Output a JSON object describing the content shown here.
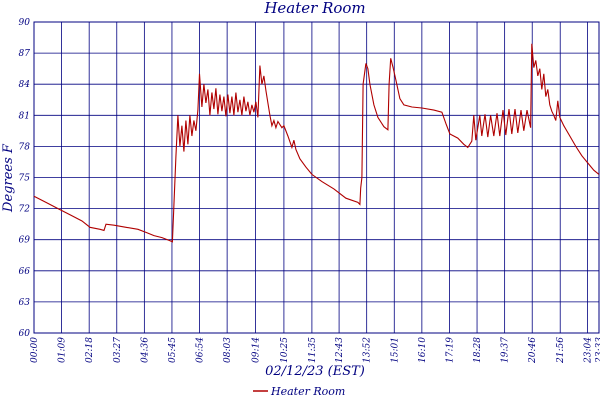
{
  "chart_data": {
    "type": "line",
    "title": "Heater Room",
    "xlabel": "02/12/23 (EST)",
    "ylabel": "Degrees F",
    "ylim": [
      60,
      90
    ],
    "yticks": [
      60,
      63,
      66,
      69,
      72,
      75,
      78,
      81,
      84,
      87,
      90
    ],
    "ytick_labels": [
      "60",
      "63",
      "66",
      "69",
      "72",
      "75",
      "78",
      "81",
      "84",
      "87",
      "90"
    ],
    "xlim": [
      "00:00",
      "23:33"
    ],
    "xticks": [
      "00:00",
      "01:09",
      "02:18",
      "03:27",
      "04:36",
      "05:45",
      "06:54",
      "08:03",
      "09:14",
      "10:25",
      "11:35",
      "12:43",
      "13:52",
      "15:01",
      "16:10",
      "17:19",
      "18:28",
      "19:37",
      "20:46",
      "21:56",
      "23:04",
      "23:33"
    ],
    "grid": true,
    "legend_position": "bottom-center",
    "colors": {
      "series": "#b00000",
      "grid": "#000080",
      "text": "#000080"
    },
    "series": [
      {
        "name": "Heater Room",
        "points": [
          [
            "00:00",
            73.2
          ],
          [
            "00:30",
            72.6
          ],
          [
            "01:00",
            72.0
          ],
          [
            "01:30",
            71.4
          ],
          [
            "02:00",
            70.8
          ],
          [
            "02:20",
            70.2
          ],
          [
            "02:45",
            70.0
          ],
          [
            "02:55",
            69.9
          ],
          [
            "03:00",
            70.5
          ],
          [
            "03:20",
            70.4
          ],
          [
            "03:50",
            70.2
          ],
          [
            "04:20",
            70.0
          ],
          [
            "04:40",
            69.7
          ],
          [
            "05:00",
            69.4
          ],
          [
            "05:20",
            69.2
          ],
          [
            "05:40",
            68.9
          ],
          [
            "05:46",
            68.8
          ],
          [
            "05:55",
            77.0
          ],
          [
            "06:00",
            81.0
          ],
          [
            "06:05",
            78.0
          ],
          [
            "06:10",
            80.0
          ],
          [
            "06:15",
            77.5
          ],
          [
            "06:20",
            80.5
          ],
          [
            "06:25",
            78.2
          ],
          [
            "06:30",
            81.0
          ],
          [
            "06:35",
            79.0
          ],
          [
            "06:40",
            80.5
          ],
          [
            "06:45",
            79.5
          ],
          [
            "06:50",
            81.5
          ],
          [
            "06:54",
            85.0
          ],
          [
            "07:00",
            81.8
          ],
          [
            "07:05",
            84.0
          ],
          [
            "07:10",
            82.2
          ],
          [
            "07:15",
            83.5
          ],
          [
            "07:20",
            81.0
          ],
          [
            "07:25",
            83.2
          ],
          [
            "07:30",
            81.6
          ],
          [
            "07:35",
            83.6
          ],
          [
            "07:40",
            81.1
          ],
          [
            "07:45",
            83.0
          ],
          [
            "07:50",
            81.4
          ],
          [
            "07:55",
            82.8
          ],
          [
            "08:00",
            80.9
          ],
          [
            "08:05",
            83.0
          ],
          [
            "08:10",
            81.2
          ],
          [
            "08:15",
            82.8
          ],
          [
            "08:20",
            81.0
          ],
          [
            "08:25",
            83.2
          ],
          [
            "08:30",
            81.3
          ],
          [
            "08:35",
            82.5
          ],
          [
            "08:40",
            81.0
          ],
          [
            "08:45",
            82.8
          ],
          [
            "08:50",
            81.4
          ],
          [
            "08:55",
            82.3
          ],
          [
            "09:00",
            81.0
          ],
          [
            "09:05",
            82.0
          ],
          [
            "09:10",
            81.3
          ],
          [
            "09:15",
            82.3
          ],
          [
            "09:20",
            80.8
          ],
          [
            "09:25",
            85.8
          ],
          [
            "09:30",
            84.0
          ],
          [
            "09:35",
            84.8
          ],
          [
            "09:40",
            83.4
          ],
          [
            "09:45",
            82.2
          ],
          [
            "09:50",
            81.0
          ],
          [
            "09:55",
            80.0
          ],
          [
            "10:00",
            80.5
          ],
          [
            "10:05",
            79.8
          ],
          [
            "10:10",
            80.4
          ],
          [
            "10:20",
            79.8
          ],
          [
            "10:25",
            80.0
          ],
          [
            "10:35",
            79.0
          ],
          [
            "10:45",
            77.9
          ],
          [
            "10:50",
            78.6
          ],
          [
            "10:55",
            77.7
          ],
          [
            "11:05",
            76.8
          ],
          [
            "11:20",
            76.0
          ],
          [
            "11:35",
            75.3
          ],
          [
            "12:00",
            74.6
          ],
          [
            "12:30",
            73.9
          ],
          [
            "13:00",
            73.0
          ],
          [
            "13:30",
            72.6
          ],
          [
            "13:35",
            72.4
          ],
          [
            "13:37",
            74.0
          ],
          [
            "13:40",
            75.0
          ],
          [
            "13:43",
            84.0
          ],
          [
            "13:50",
            86.0
          ],
          [
            "13:55",
            85.5
          ],
          [
            "14:00",
            84.0
          ],
          [
            "14:10",
            82.0
          ],
          [
            "14:20",
            80.8
          ],
          [
            "14:35",
            79.9
          ],
          [
            "14:45",
            79.6
          ],
          [
            "14:48",
            84.0
          ],
          [
            "14:52",
            86.5
          ],
          [
            "14:58",
            85.6
          ],
          [
            "15:05",
            84.4
          ],
          [
            "15:15",
            82.6
          ],
          [
            "15:25",
            82.0
          ],
          [
            "15:45",
            81.8
          ],
          [
            "16:10",
            81.7
          ],
          [
            "16:40",
            81.5
          ],
          [
            "17:00",
            81.3
          ],
          [
            "17:10",
            80.2
          ],
          [
            "17:20",
            79.2
          ],
          [
            "17:40",
            78.8
          ],
          [
            "17:55",
            78.2
          ],
          [
            "18:05",
            77.9
          ],
          [
            "18:15",
            78.5
          ],
          [
            "18:20",
            81.0
          ],
          [
            "18:25",
            78.6
          ],
          [
            "18:35",
            81.0
          ],
          [
            "18:40",
            79.0
          ],
          [
            "18:48",
            81.1
          ],
          [
            "18:55",
            78.9
          ],
          [
            "19:02",
            81.0
          ],
          [
            "19:10",
            79.0
          ],
          [
            "19:18",
            81.2
          ],
          [
            "19:25",
            79.0
          ],
          [
            "19:33",
            81.5
          ],
          [
            "19:40",
            79.1
          ],
          [
            "19:48",
            81.6
          ],
          [
            "19:55",
            79.2
          ],
          [
            "20:03",
            81.6
          ],
          [
            "20:10",
            79.3
          ],
          [
            "20:18",
            81.5
          ],
          [
            "20:25",
            79.5
          ],
          [
            "20:33",
            81.5
          ],
          [
            "20:42",
            79.8
          ],
          [
            "20:45",
            87.9
          ],
          [
            "20:50",
            85.6
          ],
          [
            "20:55",
            86.3
          ],
          [
            "21:00",
            84.8
          ],
          [
            "21:05",
            85.5
          ],
          [
            "21:10",
            83.5
          ],
          [
            "21:15",
            85.0
          ],
          [
            "21:20",
            82.8
          ],
          [
            "21:25",
            83.5
          ],
          [
            "21:30",
            82.0
          ],
          [
            "21:35",
            81.4
          ],
          [
            "21:40",
            81.0
          ],
          [
            "21:45",
            80.5
          ],
          [
            "21:50",
            82.4
          ],
          [
            "21:55",
            80.8
          ],
          [
            "22:05",
            80.0
          ],
          [
            "22:20",
            79.0
          ],
          [
            "22:35",
            78.0
          ],
          [
            "22:50",
            77.1
          ],
          [
            "23:05",
            76.4
          ],
          [
            "23:20",
            75.7
          ],
          [
            "23:33",
            75.3
          ]
        ]
      }
    ]
  }
}
